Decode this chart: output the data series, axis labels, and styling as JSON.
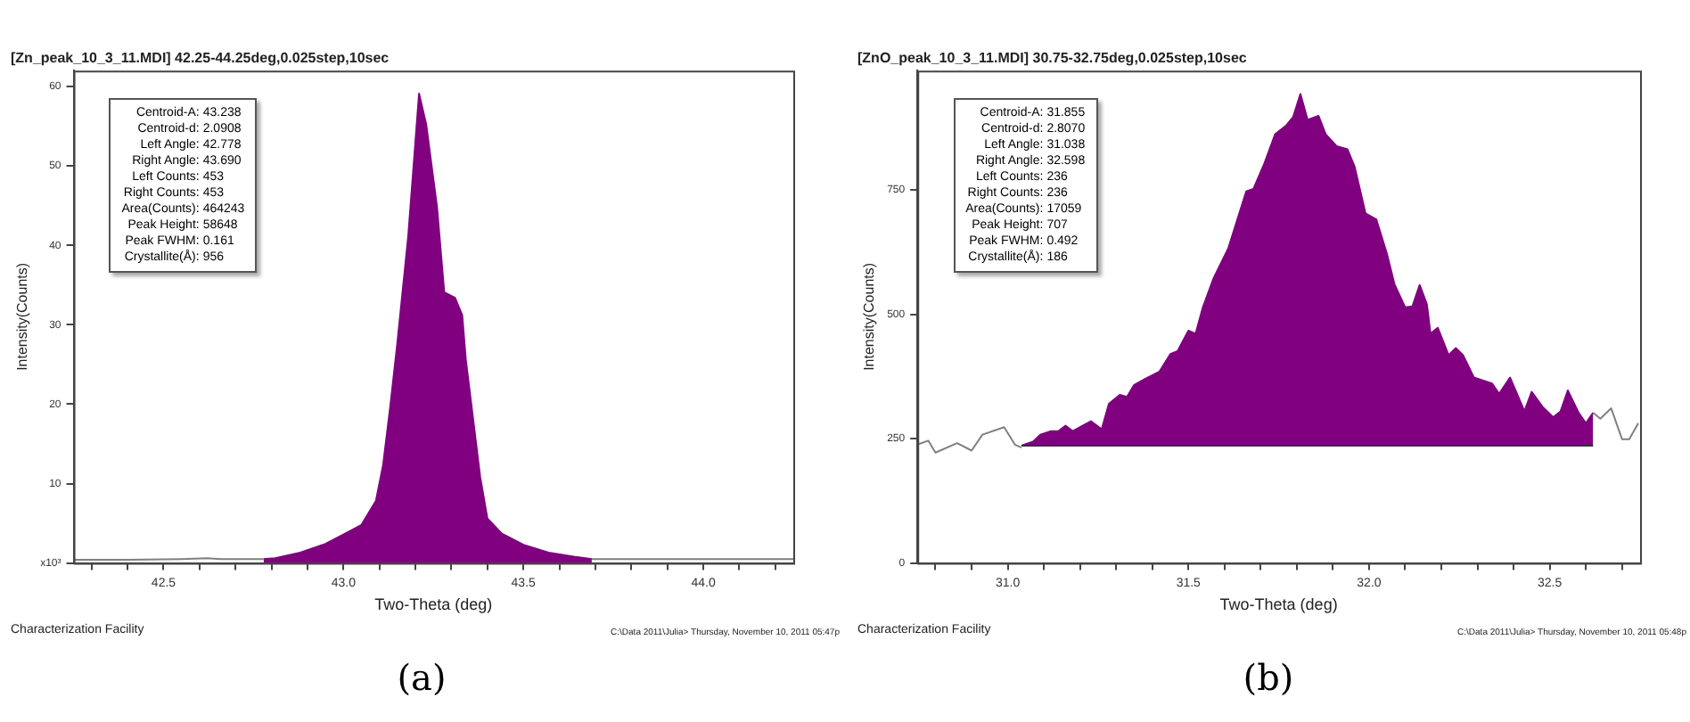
{
  "chart_data": [
    {
      "type": "area",
      "title": "[Zn_peak_10_3_11.MDI] 42.25-44.25deg,0.025step,10sec",
      "xlabel": "Two-Theta (deg)",
      "ylabel": "Intensity(Counts)",
      "xlim": [
        42.25,
        44.25
      ],
      "xticks": [
        {
          "value": 42.3,
          "label": null
        },
        {
          "value": 42.4,
          "label": null
        },
        42.5,
        {
          "value": 42.6,
          "label": null
        },
        {
          "value": 42.7,
          "label": null
        },
        {
          "value": 42.8,
          "label": null
        },
        {
          "value": 42.9,
          "label": null
        },
        {
          "value": 43,
          "label": "43.0"
        },
        {
          "value": 43.1,
          "label": null
        },
        {
          "value": 43.2,
          "label": null
        },
        {
          "value": 43.3,
          "label": null
        },
        {
          "value": 43.4,
          "label": null
        },
        43.5,
        {
          "value": 43.6,
          "label": null
        },
        {
          "value": 43.7,
          "label": null
        },
        {
          "value": 43.8,
          "label": null
        },
        {
          "value": 43.9,
          "label": null
        },
        {
          "value": 44,
          "label": "44.0"
        },
        {
          "value": 44.1,
          "label": null
        },
        {
          "value": 44.2,
          "label": null
        }
      ],
      "ylim": [
        0,
        62
      ],
      "yticks": [
        {
          "value": 0,
          "label": "x10³"
        },
        10,
        20,
        30,
        40,
        50,
        60
      ],
      "grid": false,
      "legend": false,
      "series": [
        {
          "type": "area",
          "color": "#800080",
          "x": [
            42.778,
            42.81,
            42.88,
            42.95,
            43.0,
            43.05,
            43.09,
            43.11,
            43.13,
            43.15,
            43.16,
            43.18,
            43.21,
            43.23,
            43.26,
            43.28,
            43.31,
            43.33,
            43.34,
            43.36,
            43.38,
            43.4,
            43.44,
            43.5,
            43.57,
            43.64,
            43.69
          ],
          "values": [
            0.5,
            0.6,
            1.3,
            2.4,
            3.6,
            4.8,
            7.8,
            12.3,
            19.7,
            27.8,
            32.3,
            41.2,
            59.1,
            55.2,
            44.8,
            34.1,
            33.4,
            31.2,
            25.6,
            18.2,
            10.8,
            5.6,
            3.7,
            2.3,
            1.3,
            0.8,
            0.5
          ]
        },
        {
          "type": "line",
          "color": "#808080",
          "x": [
            42.25,
            42.4,
            42.55,
            42.62,
            42.66,
            42.778,
            43.2,
            43.69,
            43.8,
            44.0,
            44.25
          ],
          "values": [
            0.4,
            0.4,
            0.5,
            0.6,
            0.5,
            0.5,
            null,
            0.5,
            0.5,
            0.5,
            0.5
          ]
        }
      ],
      "annotations": [
        "Centroid-A: 43.238",
        "Centroid-d: 2.0908",
        "Left Angle: 42.778",
        "Right Angle: 43.690",
        "Left Counts: 453",
        "Right Counts: 453",
        "Area(Counts): 464243",
        "Peak Height: 58648",
        "Peak FWHM: 0.161",
        "Crystallite(Å): 956",
        "Characterization Facility",
        "C:\\Data 2011\\Julia> Thursday, November 10, 2011 05:47p",
        "(a)"
      ]
    },
    {
      "type": "area",
      "title": "[ZnO_peak_10_3_11.MDI] 30.75-32.75deg,0.025step,10sec",
      "xlabel": "Two-Theta (deg)",
      "ylabel": "Intensity(Counts)",
      "xlim": [
        30.75,
        32.75
      ],
      "xticks": [
        {
          "value": 30.8,
          "label": null
        },
        {
          "value": 30.9,
          "label": null
        },
        {
          "value": 31,
          "label": "31.0"
        },
        {
          "value": 31.1,
          "label": null
        },
        {
          "value": 31.2,
          "label": null
        },
        {
          "value": 31.3,
          "label": null
        },
        {
          "value": 31.4,
          "label": null
        },
        31.5,
        {
          "value": 31.6,
          "label": null
        },
        {
          "value": 31.7,
          "label": null
        },
        {
          "value": 31.8,
          "label": null
        },
        {
          "value": 31.9,
          "label": null
        },
        {
          "value": 32,
          "label": "32.0"
        },
        {
          "value": 32.1,
          "label": null
        },
        {
          "value": 32.2,
          "label": null
        },
        {
          "value": 32.3,
          "label": null
        },
        {
          "value": 32.4,
          "label": null
        },
        32.5,
        {
          "value": 32.6,
          "label": null
        },
        {
          "value": 32.7,
          "label": null
        }
      ],
      "ylim": [
        0,
        990
      ],
      "yticks": [
        0,
        250,
        500,
        750
      ],
      "grid": false,
      "legend": false,
      "series": [
        {
          "type": "line",
          "color": "#333333",
          "x": [
            31.038,
            32.62
          ],
          "values": [
            236,
            236
          ]
        },
        {
          "type": "area",
          "color": "#800080",
          "x": [
            31.038,
            31.07,
            31.09,
            31.12,
            31.14,
            31.16,
            31.18,
            31.23,
            31.26,
            31.28,
            31.31,
            31.33,
            31.35,
            31.38,
            31.42,
            31.45,
            31.47,
            31.5,
            31.52,
            31.54,
            31.57,
            31.61,
            31.66,
            31.68,
            31.71,
            31.74,
            31.77,
            31.79,
            31.81,
            31.83,
            31.86,
            31.88,
            31.91,
            31.94,
            31.96,
            31.99,
            32.02,
            32.05,
            32.07,
            32.1,
            32.12,
            32.14,
            32.16,
            32.17,
            32.19,
            32.22,
            32.24,
            32.26,
            32.29,
            32.34,
            32.36,
            32.39,
            32.43,
            32.45,
            32.48,
            32.51,
            32.53,
            32.55,
            32.58,
            32.6,
            32.62
          ],
          "values": [
            236,
            244,
            258,
            265,
            265,
            276,
            265,
            285,
            269,
            320,
            338,
            334,
            358,
            370,
            385,
            420,
            426,
            467,
            461,
            514,
            573,
            632,
            747,
            752,
            803,
            862,
            879,
            897,
            943,
            891,
            899,
            862,
            838,
            832,
            797,
            703,
            691,
            620,
            561,
            514,
            516,
            559,
            520,
            461,
            473,
            418,
            432,
            418,
            373,
            361,
            340,
            373,
            305,
            344,
            314,
            293,
            305,
            347,
            302,
            281,
            302
          ]
        },
        {
          "type": "line",
          "color": "#808080",
          "x": [
            30.75,
            30.78,
            30.8,
            30.86,
            30.9,
            30.93,
            30.99,
            31.02,
            31.038,
            31.8,
            32.62,
            32.64,
            32.67,
            32.7,
            32.72,
            32.745
          ],
          "values": [
            238,
            246,
            222,
            241,
            226,
            258,
            273,
            238,
            232,
            null,
            302,
            290,
            311,
            249,
            249,
            281
          ]
        }
      ],
      "annotations": [
        "Centroid-A: 31.855",
        "Centroid-d: 2.8070",
        "Left Angle: 31.038",
        "Right Angle: 32.598",
        "Left Counts: 236",
        "Right Counts: 236",
        "Area(Counts): 17059",
        "Peak Height: 707",
        "Peak FWHM: 0.492",
        "Crystallite(Å): 186",
        "Characterization Facility",
        "C:\\Data 2011\\Julia> Thursday, November 10, 2011 05:48p",
        "(b)"
      ]
    }
  ]
}
